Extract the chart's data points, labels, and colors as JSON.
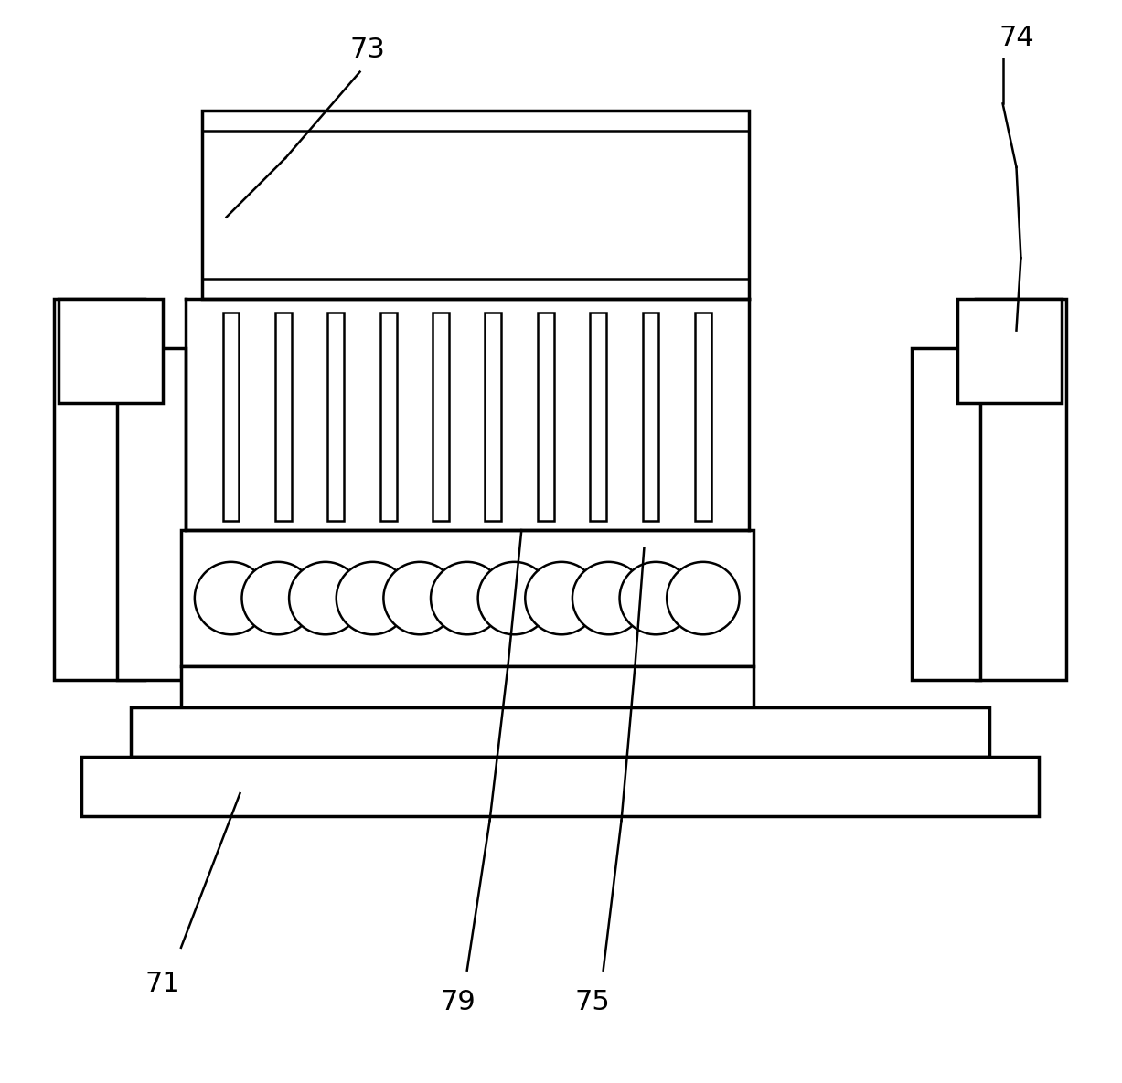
{
  "bg_color": "#ffffff",
  "line_color": "#000000",
  "lw_main": 2.5,
  "lw_thin": 1.8,
  "fig_width": 12.27,
  "fig_height": 11.85,
  "n_circles": 11,
  "n_rods": 10
}
